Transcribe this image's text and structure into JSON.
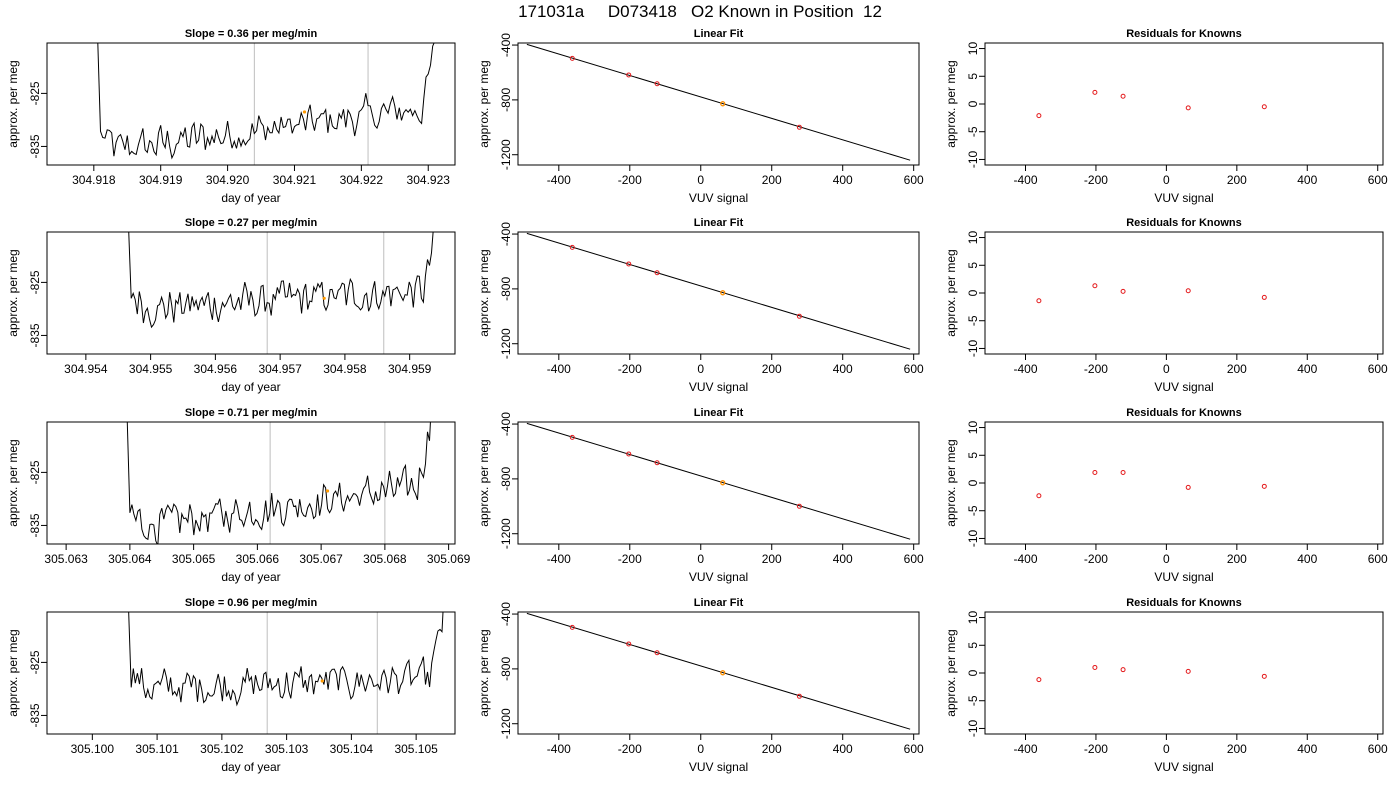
{
  "figure": {
    "title": "171031a     D073418   O2 Known in Position  12"
  },
  "chart_data": [
    {
      "type": "line",
      "panel": "trace",
      "title": "Slope =  0.36  per meg/min",
      "xlabel": "day of year",
      "ylabel": "approx. per meg",
      "xlim": [
        304.9173,
        304.9234
      ],
      "ylim": [
        -838.5,
        -815.5
      ],
      "xticks": [
        304.918,
        304.919,
        304.92,
        304.921,
        304.922,
        304.923
      ],
      "xtick_labels": [
        "304.918",
        "304.919",
        "304.920",
        "304.921",
        "304.922",
        "304.923"
      ],
      "yticks": [
        -835,
        -825
      ],
      "ytick_labels": [
        "-835",
        "-825"
      ],
      "vlines": [
        304.9204,
        304.9221
      ],
      "highlight_point": {
        "x": 304.92115,
        "y": -828.5
      },
      "base_level": -831.5,
      "series": [
        {
          "x_range": [
            304.9181,
            304.9231
          ],
          "trend": [
            -836.0,
            -827.5
          ]
        }
      ]
    },
    {
      "type": "line",
      "panel": "trace",
      "title": "Slope =  0.27  per meg/min",
      "xlabel": "day of year",
      "ylabel": "approx. per meg",
      "xlim": [
        304.9534,
        304.9597
      ],
      "ylim": [
        -838.5,
        -815.5
      ],
      "xticks": [
        304.954,
        304.955,
        304.956,
        304.957,
        304.958,
        304.959
      ],
      "xtick_labels": [
        "304.954",
        "304.955",
        "304.956",
        "304.957",
        "304.958",
        "304.959"
      ],
      "yticks": [
        -835,
        -825
      ],
      "ytick_labels": [
        "-835",
        "-825"
      ],
      "vlines": [
        304.9568,
        304.9586
      ],
      "highlight_point": {
        "x": 304.95768,
        "y": -828.0
      },
      "base_level": -829.5,
      "series": [
        {
          "x_range": [
            304.9547,
            304.9594
          ],
          "trend": [
            -830.0,
            -826.5
          ]
        }
      ]
    },
    {
      "type": "line",
      "panel": "trace",
      "title": "Slope =  0.71  per meg/min",
      "xlabel": "day of year",
      "ylabel": "approx. per meg",
      "xlim": [
        305.0627,
        305.0691
      ],
      "ylim": [
        -838.5,
        -815.5
      ],
      "xticks": [
        305.063,
        305.064,
        305.065,
        305.066,
        305.067,
        305.068,
        305.069
      ],
      "xtick_labels": [
        "305.063",
        "305.064",
        "305.065",
        "305.066",
        "305.067",
        "305.068",
        "305.069"
      ],
      "yticks": [
        -835,
        -825
      ],
      "ytick_labels": [
        "-835",
        "-825"
      ],
      "vlines": [
        305.0662,
        305.068
      ],
      "highlight_point": {
        "x": 305.0671,
        "y": -828.5
      },
      "base_level": -831.0,
      "series": [
        {
          "x_range": [
            305.064,
            305.0687
          ],
          "trend": [
            -835.5,
            -827.5
          ]
        }
      ]
    },
    {
      "type": "line",
      "panel": "trace",
      "title": "Slope =  0.96  per meg/min",
      "xlabel": "day of year",
      "ylabel": "approx. per meg",
      "xlim": [
        305.0993,
        305.1056
      ],
      "ylim": [
        -838.5,
        -815.5
      ],
      "xticks": [
        305.1,
        305.101,
        305.102,
        305.103,
        305.104,
        305.105
      ],
      "xtick_labels": [
        "305.100",
        "305.101",
        "305.102",
        "305.103",
        "305.104",
        "305.105"
      ],
      "yticks": [
        -835,
        -825
      ],
      "ytick_labels": [
        "-835",
        "-825"
      ],
      "vlines": [
        305.1027,
        305.1044
      ],
      "highlight_point": {
        "x": 305.10355,
        "y": -828.5
      },
      "base_level": -829.5,
      "series": [
        {
          "x_range": [
            305.1006,
            305.1054
          ],
          "trend": [
            -830.0,
            -828.0
          ]
        }
      ]
    },
    {
      "type": "scatter",
      "panel": "fit",
      "title": "Linear Fit",
      "xlabel": "VUV signal",
      "ylabel": "approx. per meg",
      "xlim": [
        -515,
        615
      ],
      "ylim": [
        -1275,
        -385
      ],
      "xticks": [
        -400,
        -200,
        0,
        200,
        400,
        600
      ],
      "xtick_labels": [
        "-400",
        "-200",
        "0",
        "200",
        "400",
        "600"
      ],
      "yticks": [
        -1200,
        -800,
        -400
      ],
      "ytick_labels": [
        "-1200",
        "-800",
        "-400"
      ],
      "fit_line": {
        "x": [
          -490,
          590
        ],
        "y": [
          -395,
          -1240
        ]
      },
      "points": [
        {
          "x": -362,
          "y": -497
        },
        {
          "x": -203,
          "y": -618
        },
        {
          "x": -123,
          "y": -682
        },
        {
          "x": 62,
          "y": -828
        },
        {
          "x": 278,
          "y": -1000
        }
      ],
      "highlight_point": {
        "x": 62,
        "y": -828
      }
    },
    {
      "type": "scatter",
      "panel": "fit",
      "title": "Linear Fit",
      "xlabel": "VUV signal",
      "ylabel": "approx. per meg",
      "xlim": [
        -515,
        615
      ],
      "ylim": [
        -1275,
        -385
      ],
      "xticks": [
        -400,
        -200,
        0,
        200,
        400,
        600
      ],
      "xtick_labels": [
        "-400",
        "-200",
        "0",
        "200",
        "400",
        "600"
      ],
      "yticks": [
        -1200,
        -800,
        -400
      ],
      "ytick_labels": [
        "-1200",
        "-800",
        "-400"
      ],
      "fit_line": {
        "x": [
          -490,
          590
        ],
        "y": [
          -395,
          -1240
        ]
      },
      "points": [
        {
          "x": -362,
          "y": -497
        },
        {
          "x": -203,
          "y": -618
        },
        {
          "x": -123,
          "y": -682
        },
        {
          "x": 62,
          "y": -828
        },
        {
          "x": 278,
          "y": -1000
        }
      ],
      "highlight_point": {
        "x": 62,
        "y": -828
      }
    },
    {
      "type": "scatter",
      "panel": "fit",
      "title": "Linear Fit",
      "xlabel": "VUV signal",
      "ylabel": "approx. per meg",
      "xlim": [
        -515,
        615
      ],
      "ylim": [
        -1275,
        -385
      ],
      "xticks": [
        -400,
        -200,
        0,
        200,
        400,
        600
      ],
      "xtick_labels": [
        "-400",
        "-200",
        "0",
        "200",
        "400",
        "600"
      ],
      "yticks": [
        -1200,
        -800,
        -400
      ],
      "ytick_labels": [
        "-1200",
        "-800",
        "-400"
      ],
      "fit_line": {
        "x": [
          -490,
          590
        ],
        "y": [
          -395,
          -1240
        ]
      },
      "points": [
        {
          "x": -362,
          "y": -497
        },
        {
          "x": -203,
          "y": -618
        },
        {
          "x": -123,
          "y": -682
        },
        {
          "x": 62,
          "y": -828
        },
        {
          "x": 278,
          "y": -1000
        }
      ],
      "highlight_point": {
        "x": 62,
        "y": -828
      }
    },
    {
      "type": "scatter",
      "panel": "fit",
      "title": "Linear Fit",
      "xlabel": "VUV signal",
      "ylabel": "approx. per meg",
      "xlim": [
        -515,
        615
      ],
      "ylim": [
        -1275,
        -385
      ],
      "xticks": [
        -400,
        -200,
        0,
        200,
        400,
        600
      ],
      "xtick_labels": [
        "-400",
        "-200",
        "0",
        "200",
        "400",
        "600"
      ],
      "yticks": [
        -1200,
        -800,
        -400
      ],
      "ytick_labels": [
        "-1200",
        "-800",
        "-400"
      ],
      "fit_line": {
        "x": [
          -490,
          590
        ],
        "y": [
          -395,
          -1240
        ]
      },
      "points": [
        {
          "x": -362,
          "y": -497
        },
        {
          "x": -203,
          "y": -618
        },
        {
          "x": -123,
          "y": -682
        },
        {
          "x": 62,
          "y": -828
        },
        {
          "x": 278,
          "y": -1000
        }
      ],
      "highlight_point": {
        "x": 62,
        "y": -828
      }
    },
    {
      "type": "scatter",
      "panel": "resid",
      "title": "Residuals for Knowns",
      "xlabel": "VUV signal",
      "ylabel": "approx. per meg",
      "xlim": [
        -515,
        615
      ],
      "ylim": [
        -11,
        11
      ],
      "xticks": [
        -400,
        -200,
        0,
        200,
        400,
        600
      ],
      "xtick_labels": [
        "-400",
        "-200",
        "0",
        "200",
        "400",
        "600"
      ],
      "yticks": [
        -10,
        -5,
        0,
        5,
        10
      ],
      "ytick_labels": [
        "-10",
        "-5",
        "0",
        "5",
        "10"
      ],
      "points": [
        {
          "x": -362,
          "y": -2.1
        },
        {
          "x": -203,
          "y": 2.1
        },
        {
          "x": -123,
          "y": 1.4
        },
        {
          "x": 62,
          "y": -0.7
        },
        {
          "x": 278,
          "y": -0.5
        }
      ]
    },
    {
      "type": "scatter",
      "panel": "resid",
      "title": "Residuals for Knowns",
      "xlabel": "VUV signal",
      "ylabel": "approx. per meg",
      "xlim": [
        -515,
        615
      ],
      "ylim": [
        -11,
        11
      ],
      "xticks": [
        -400,
        -200,
        0,
        200,
        400,
        600
      ],
      "xtick_labels": [
        "-400",
        "-200",
        "0",
        "200",
        "400",
        "600"
      ],
      "yticks": [
        -10,
        -5,
        0,
        5,
        10
      ],
      "ytick_labels": [
        "-10",
        "-5",
        "0",
        "5",
        "10"
      ],
      "points": [
        {
          "x": -362,
          "y": -1.4
        },
        {
          "x": -203,
          "y": 1.3
        },
        {
          "x": -123,
          "y": 0.3
        },
        {
          "x": 62,
          "y": 0.4
        },
        {
          "x": 278,
          "y": -0.8
        }
      ]
    },
    {
      "type": "scatter",
      "panel": "resid",
      "title": "Residuals for Knowns",
      "xlabel": "VUV signal",
      "ylabel": "approx. per meg",
      "xlim": [
        -515,
        615
      ],
      "ylim": [
        -11,
        11
      ],
      "xticks": [
        -400,
        -200,
        0,
        200,
        400,
        600
      ],
      "xtick_labels": [
        "-400",
        "-200",
        "0",
        "200",
        "400",
        "600"
      ],
      "yticks": [
        -10,
        -5,
        0,
        5,
        10
      ],
      "ytick_labels": [
        "-10",
        "-5",
        "0",
        "5",
        "10"
      ],
      "points": [
        {
          "x": -362,
          "y": -2.3
        },
        {
          "x": -203,
          "y": 1.9
        },
        {
          "x": -123,
          "y": 1.9
        },
        {
          "x": 62,
          "y": -0.8
        },
        {
          "x": 278,
          "y": -0.6
        }
      ]
    },
    {
      "type": "scatter",
      "panel": "resid",
      "title": "Residuals for Knowns",
      "xlabel": "VUV signal",
      "ylabel": "approx. per meg",
      "xlim": [
        -515,
        615
      ],
      "ylim": [
        -11,
        11
      ],
      "xticks": [
        -400,
        -200,
        0,
        200,
        400,
        600
      ],
      "xtick_labels": [
        "-400",
        "-200",
        "0",
        "200",
        "400",
        "600"
      ],
      "yticks": [
        -10,
        -5,
        0,
        5,
        10
      ],
      "ytick_labels": [
        "-10",
        "-5",
        "0",
        "5",
        "10"
      ],
      "points": [
        {
          "x": -362,
          "y": -1.2
        },
        {
          "x": -203,
          "y": 1.0
        },
        {
          "x": -123,
          "y": 0.6
        },
        {
          "x": 62,
          "y": 0.3
        },
        {
          "x": 278,
          "y": -0.6
        }
      ]
    }
  ],
  "colors": {
    "line": "#000000",
    "vline": "#bebebe",
    "point": "#e41a1c",
    "highlight": "#ff9900"
  }
}
